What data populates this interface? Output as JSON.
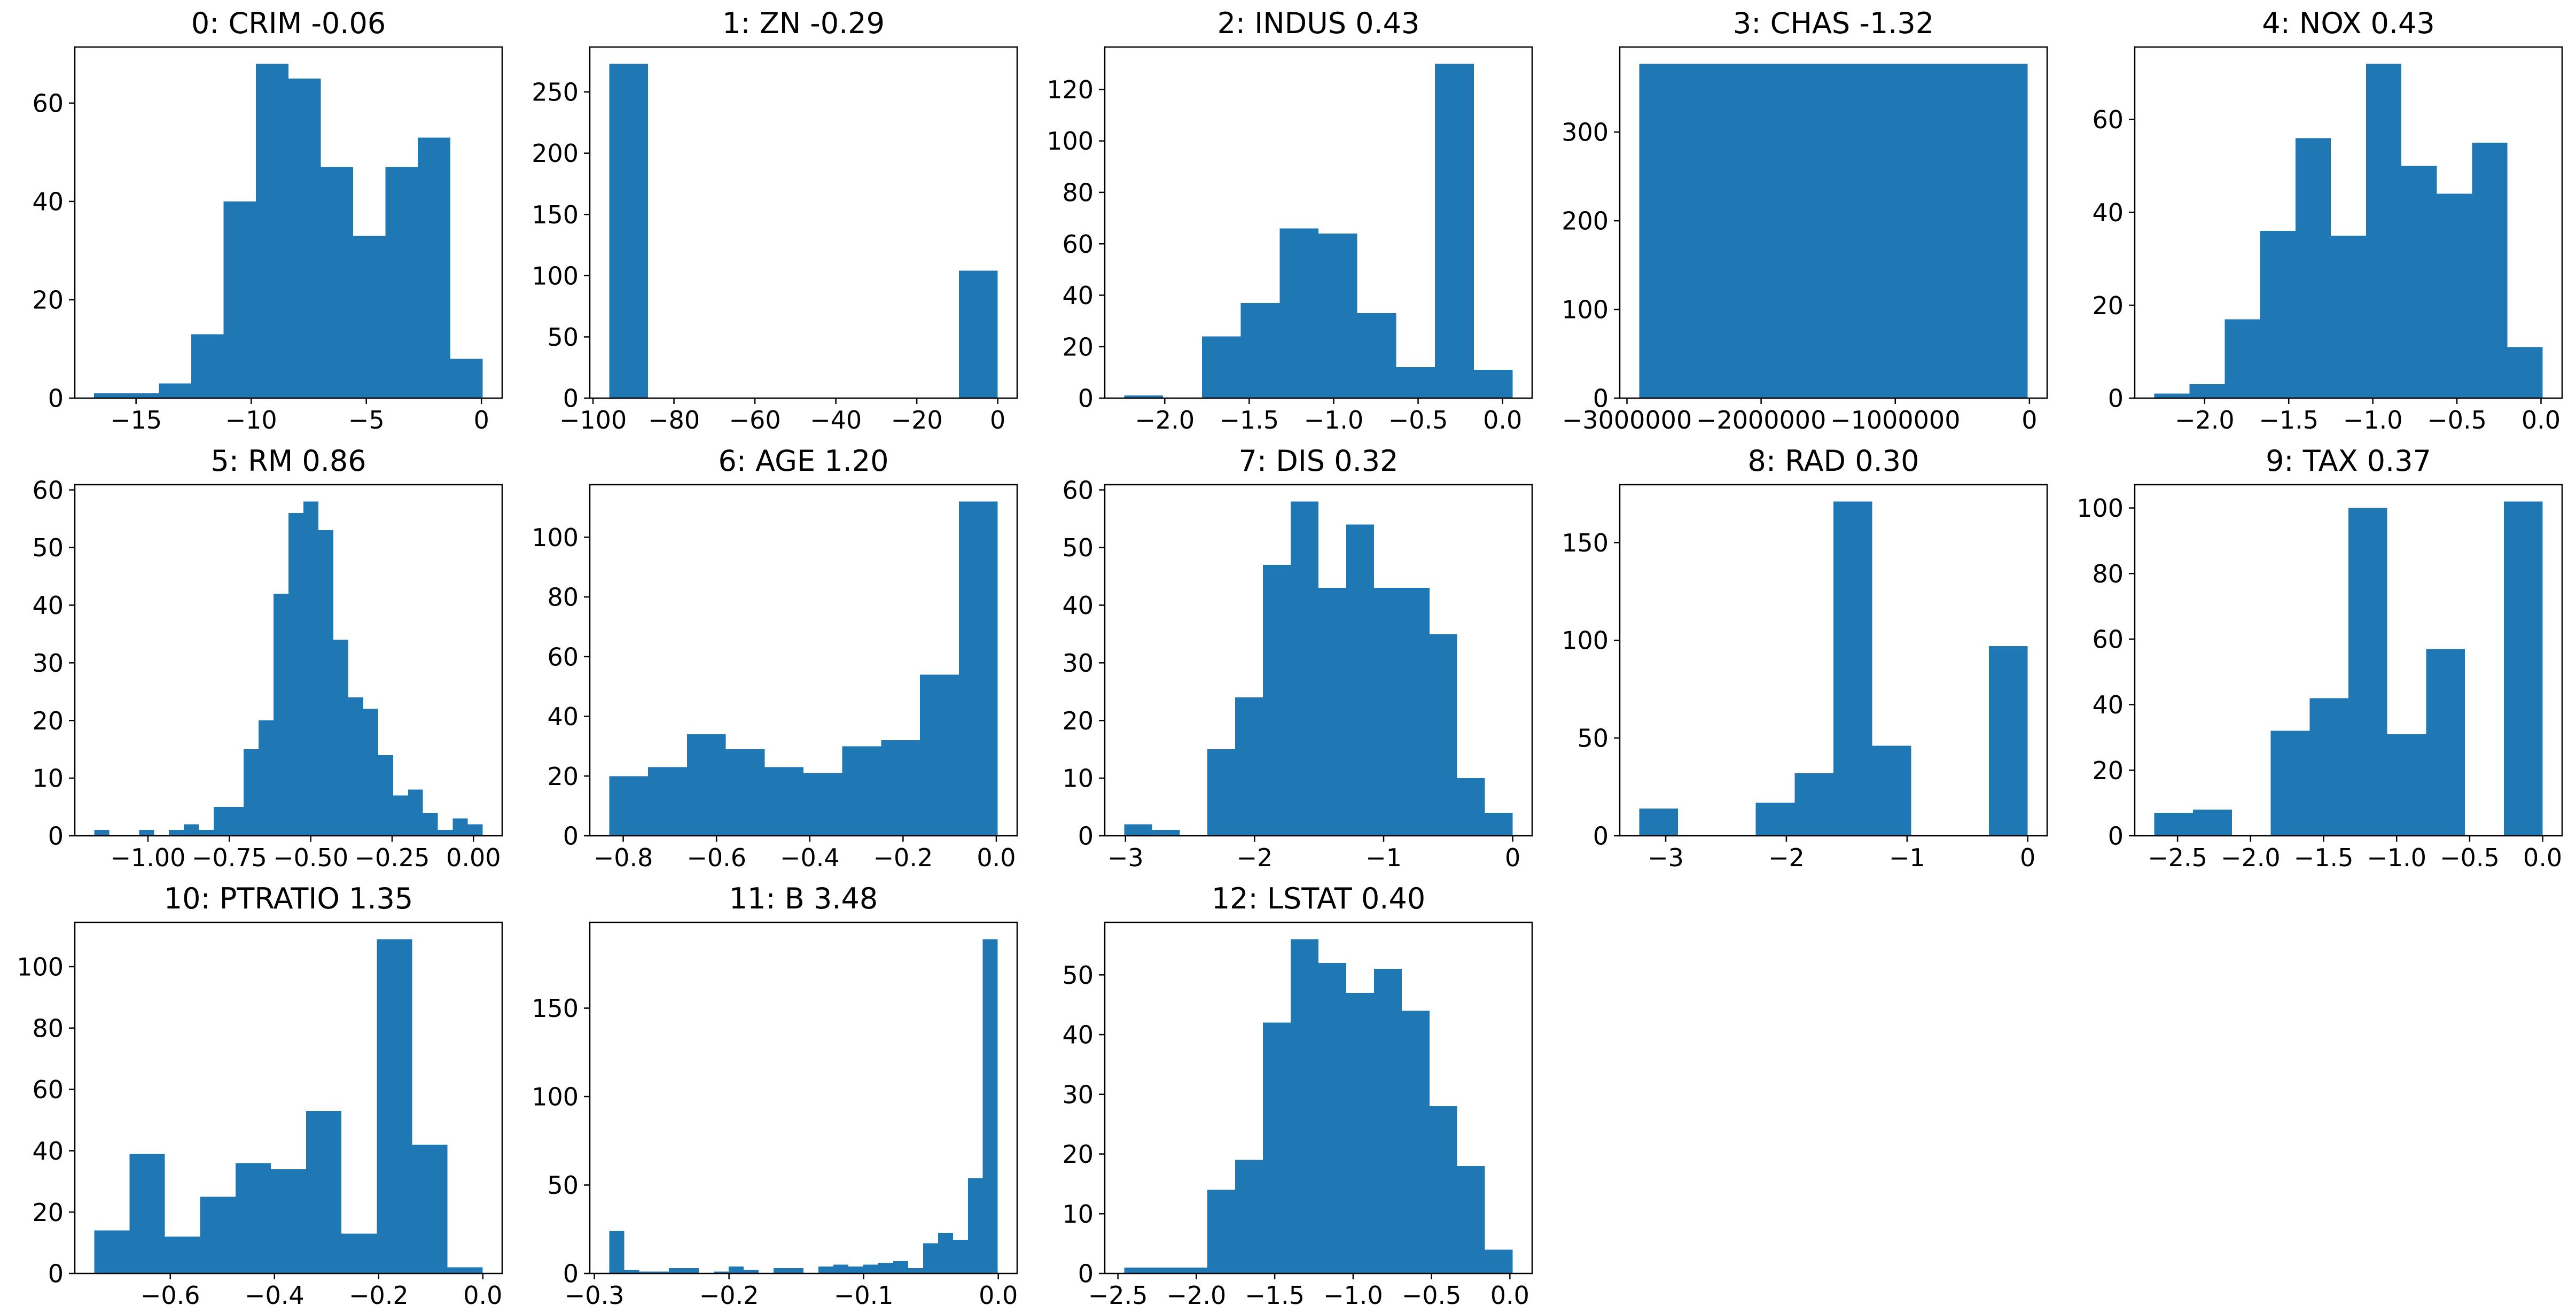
{
  "figure": {
    "background": "#ffffff",
    "bar_color": "#1f77b4",
    "axis_color": "#000000",
    "grid": false,
    "rows": 3,
    "cols": 5,
    "type": "histogram-grid"
  },
  "chart_data": [
    {
      "type": "histogram",
      "title": "0: CRIM -0.06",
      "feature": "CRIM",
      "feature_index": 0,
      "title_value": -0.06,
      "bin_start": -16.82,
      "bin_width": 1.406,
      "counts": [
        1,
        1,
        3,
        13,
        40,
        68,
        65,
        47,
        33,
        47,
        53,
        8
      ],
      "xlim": [
        -17.66,
        0.9
      ],
      "ylim": [
        0,
        71.4
      ],
      "xticks": [
        {
          "v": -15,
          "label": "−15"
        },
        {
          "v": -10,
          "label": "−10"
        },
        {
          "v": -5,
          "label": "−5"
        },
        {
          "v": 0,
          "label": "0"
        }
      ],
      "yticks": [
        {
          "v": 0,
          "label": "0"
        },
        {
          "v": 20,
          "label": "20"
        },
        {
          "v": 40,
          "label": "40"
        },
        {
          "v": 60,
          "label": "60"
        }
      ]
    },
    {
      "type": "histogram",
      "title": "1: ZN -0.29",
      "feature": "ZN",
      "feature_index": 1,
      "title_value": -0.29,
      "bin_start": -96.0,
      "bin_width": 9.6,
      "counts": [
        273,
        0,
        0,
        0,
        0,
        0,
        0,
        0,
        0,
        104
      ],
      "xlim": [
        -100.8,
        4.8
      ],
      "ylim": [
        0,
        286.7
      ],
      "xticks": [
        {
          "v": -100,
          "label": "−100"
        },
        {
          "v": -80,
          "label": "−80"
        },
        {
          "v": -60,
          "label": "−60"
        },
        {
          "v": -40,
          "label": "−40"
        },
        {
          "v": -20,
          "label": "−20"
        },
        {
          "v": 0,
          "label": "0"
        }
      ],
      "yticks": [
        {
          "v": 0,
          "label": "0"
        },
        {
          "v": 50,
          "label": "50"
        },
        {
          "v": 100,
          "label": "100"
        },
        {
          "v": 150,
          "label": "150"
        },
        {
          "v": 200,
          "label": "200"
        },
        {
          "v": 250,
          "label": "250"
        }
      ]
    },
    {
      "type": "histogram",
      "title": "2: INDUS 0.43",
      "feature": "INDUS",
      "feature_index": 2,
      "title_value": 0.43,
      "bin_start": -2.24,
      "bin_width": 0.23,
      "counts": [
        1,
        0,
        24,
        37,
        66,
        64,
        33,
        12,
        130,
        11
      ],
      "xlim": [
        -2.355,
        0.175
      ],
      "ylim": [
        0,
        136.5
      ],
      "xticks": [
        {
          "v": -2.0,
          "label": "−2.0"
        },
        {
          "v": -1.5,
          "label": "−1.5"
        },
        {
          "v": -1.0,
          "label": "−1.0"
        },
        {
          "v": -0.5,
          "label": "−0.5"
        },
        {
          "v": 0.0,
          "label": "0.0"
        }
      ],
      "yticks": [
        {
          "v": 0,
          "label": "0"
        },
        {
          "v": 20,
          "label": "20"
        },
        {
          "v": 40,
          "label": "40"
        },
        {
          "v": 60,
          "label": "60"
        },
        {
          "v": 80,
          "label": "80"
        },
        {
          "v": 100,
          "label": "100"
        },
        {
          "v": 120,
          "label": "120"
        }
      ]
    },
    {
      "type": "histogram",
      "title": "3: CHAS -1.32",
      "feature": "CHAS",
      "feature_index": 3,
      "title_value": -1.32,
      "bin_start": -2909000,
      "bin_width": 2896000,
      "counts": [
        377
      ],
      "xlim": [
        -3053800,
        131800
      ],
      "ylim": [
        0,
        395.9
      ],
      "xticks": [
        {
          "v": -3000000,
          "label": "−3000000"
        },
        {
          "v": -2000000,
          "label": "−2000000"
        },
        {
          "v": -1000000,
          "label": "−1000000"
        },
        {
          "v": 0,
          "label": "0"
        }
      ],
      "yticks": [
        {
          "v": 0,
          "label": "0"
        },
        {
          "v": 100,
          "label": "100"
        },
        {
          "v": 200,
          "label": "200"
        },
        {
          "v": 300,
          "label": "300"
        }
      ]
    },
    {
      "type": "histogram",
      "title": "4: NOX 0.43",
      "feature": "NOX",
      "feature_index": 4,
      "title_value": 0.43,
      "bin_start": -2.3,
      "bin_width": 0.21,
      "counts": [
        1,
        3,
        17,
        36,
        56,
        35,
        72,
        50,
        44,
        55,
        11
      ],
      "xlim": [
        -2.4155,
        0.1255
      ],
      "ylim": [
        0,
        75.6
      ],
      "xticks": [
        {
          "v": -2.0,
          "label": "−2.0"
        },
        {
          "v": -1.5,
          "label": "−1.5"
        },
        {
          "v": -1.0,
          "label": "−1.0"
        },
        {
          "v": -0.5,
          "label": "−0.5"
        },
        {
          "v": 0.0,
          "label": "0.0"
        }
      ],
      "yticks": [
        {
          "v": 0,
          "label": "0"
        },
        {
          "v": 20,
          "label": "20"
        },
        {
          "v": 40,
          "label": "40"
        },
        {
          "v": 60,
          "label": "60"
        }
      ]
    },
    {
      "type": "histogram",
      "title": "5: RM 0.86",
      "feature": "RM",
      "feature_index": 5,
      "title_value": 0.86,
      "bin_start": -1.165,
      "bin_width": 0.0459,
      "counts": [
        1,
        0,
        0,
        1,
        0,
        1,
        2,
        1,
        5,
        5,
        15,
        20,
        42,
        56,
        58,
        53,
        34,
        24,
        22,
        14,
        7,
        8,
        4,
        1,
        3,
        2
      ],
      "xlim": [
        -1.2247,
        0.0881
      ],
      "ylim": [
        0,
        60.9
      ],
      "xticks": [
        {
          "v": -1.0,
          "label": "−1.00"
        },
        {
          "v": -0.75,
          "label": "−0.75"
        },
        {
          "v": -0.5,
          "label": "−0.50"
        },
        {
          "v": -0.25,
          "label": "−0.25"
        },
        {
          "v": 0.0,
          "label": "0.00"
        }
      ],
      "yticks": [
        {
          "v": 0,
          "label": "0"
        },
        {
          "v": 10,
          "label": "10"
        },
        {
          "v": 20,
          "label": "20"
        },
        {
          "v": 30,
          "label": "30"
        },
        {
          "v": 40,
          "label": "40"
        },
        {
          "v": 50,
          "label": "50"
        },
        {
          "v": 60,
          "label": "60"
        }
      ]
    },
    {
      "type": "histogram",
      "title": "6: AGE 1.20",
      "feature": "AGE",
      "feature_index": 6,
      "title_value": 1.2,
      "bin_start": -0.83,
      "bin_width": 0.0833,
      "counts": [
        20,
        23,
        34,
        29,
        23,
        21,
        30,
        32,
        54,
        112
      ],
      "xlim": [
        -0.8717,
        0.0447
      ],
      "ylim": [
        0,
        117.6
      ],
      "xticks": [
        {
          "v": -0.8,
          "label": "−0.8"
        },
        {
          "v": -0.6,
          "label": "−0.6"
        },
        {
          "v": -0.4,
          "label": "−0.4"
        },
        {
          "v": -0.2,
          "label": "−0.2"
        },
        {
          "v": 0.0,
          "label": "0.0"
        }
      ],
      "yticks": [
        {
          "v": 0,
          "label": "0"
        },
        {
          "v": 20,
          "label": "20"
        },
        {
          "v": 40,
          "label": "40"
        },
        {
          "v": 60,
          "label": "60"
        },
        {
          "v": 80,
          "label": "80"
        },
        {
          "v": 100,
          "label": "100"
        }
      ]
    },
    {
      "type": "histogram",
      "title": "7: DIS 0.32",
      "feature": "DIS",
      "feature_index": 7,
      "title_value": 0.32,
      "bin_start": -3.01,
      "bin_width": 0.215,
      "counts": [
        2,
        1,
        0,
        15,
        24,
        47,
        58,
        43,
        54,
        43,
        43,
        35,
        10,
        4
      ],
      "xlim": [
        -3.1605,
        0.1505
      ],
      "ylim": [
        0,
        60.9
      ],
      "xticks": [
        {
          "v": -3,
          "label": "−3"
        },
        {
          "v": -2,
          "label": "−2"
        },
        {
          "v": -1,
          "label": "−1"
        },
        {
          "v": 0,
          "label": "0"
        }
      ],
      "yticks": [
        {
          "v": 0,
          "label": "0"
        },
        {
          "v": 10,
          "label": "10"
        },
        {
          "v": 20,
          "label": "20"
        },
        {
          "v": 30,
          "label": "30"
        },
        {
          "v": 40,
          "label": "40"
        },
        {
          "v": 50,
          "label": "50"
        },
        {
          "v": 60,
          "label": "60"
        }
      ]
    },
    {
      "type": "histogram",
      "title": "8: RAD 0.30",
      "feature": "RAD",
      "feature_index": 8,
      "title_value": 0.3,
      "bin_start": -3.22,
      "bin_width": 0.322,
      "counts": [
        14,
        0,
        0,
        17,
        32,
        171,
        46,
        0,
        0,
        97
      ],
      "xlim": [
        -3.381,
        0.161
      ],
      "ylim": [
        0,
        179.6
      ],
      "xticks": [
        {
          "v": -3,
          "label": "−3"
        },
        {
          "v": -2,
          "label": "−2"
        },
        {
          "v": -1,
          "label": "−1"
        },
        {
          "v": 0,
          "label": "0"
        }
      ],
      "yticks": [
        {
          "v": 0,
          "label": "0"
        },
        {
          "v": 50,
          "label": "50"
        },
        {
          "v": 100,
          "label": "100"
        },
        {
          "v": 150,
          "label": "150"
        }
      ]
    },
    {
      "type": "histogram",
      "title": "9: TAX 0.37",
      "feature": "TAX",
      "feature_index": 9,
      "title_value": 0.37,
      "bin_start": -2.66,
      "bin_width": 0.266,
      "counts": [
        7,
        8,
        0,
        32,
        42,
        100,
        31,
        57,
        0,
        102
      ],
      "xlim": [
        -2.793,
        0.133
      ],
      "ylim": [
        0,
        107.1
      ],
      "xticks": [
        {
          "v": -2.5,
          "label": "−2.5"
        },
        {
          "v": -2.0,
          "label": "−2.0"
        },
        {
          "v": -1.5,
          "label": "−1.5"
        },
        {
          "v": -1.0,
          "label": "−1.0"
        },
        {
          "v": -0.5,
          "label": "−0.5"
        },
        {
          "v": 0.0,
          "label": "0.0"
        }
      ],
      "yticks": [
        {
          "v": 0,
          "label": "0"
        },
        {
          "v": 20,
          "label": "20"
        },
        {
          "v": 40,
          "label": "40"
        },
        {
          "v": 60,
          "label": "60"
        },
        {
          "v": 80,
          "label": "80"
        },
        {
          "v": 100,
          "label": "100"
        }
      ]
    },
    {
      "type": "histogram",
      "title": "10: PTRATIO 1.35",
      "feature": "PTRATIO",
      "feature_index": 10,
      "title_value": 1.35,
      "bin_start": -0.746,
      "bin_width": 0.0678,
      "counts": [
        14,
        39,
        12,
        25,
        36,
        34,
        53,
        13,
        109,
        42,
        2
      ],
      "xlim": [
        -0.7833,
        0.0371
      ],
      "ylim": [
        0,
        114.45
      ],
      "xticks": [
        {
          "v": -0.6,
          "label": "−0.6"
        },
        {
          "v": -0.4,
          "label": "−0.4"
        },
        {
          "v": -0.2,
          "label": "−0.2"
        },
        {
          "v": 0.0,
          "label": "0.0"
        }
      ],
      "yticks": [
        {
          "v": 0,
          "label": "0"
        },
        {
          "v": 20,
          "label": "20"
        },
        {
          "v": 40,
          "label": "40"
        },
        {
          "v": 60,
          "label": "60"
        },
        {
          "v": 80,
          "label": "80"
        },
        {
          "v": 100,
          "label": "100"
        }
      ]
    },
    {
      "type": "histogram",
      "title": "11: B 3.48",
      "feature": "B",
      "feature_index": 11,
      "title_value": 3.48,
      "bin_start": -0.289,
      "bin_width": 0.0111,
      "counts": [
        24,
        2,
        1,
        1,
        3,
        3,
        0,
        1,
        4,
        2,
        0,
        3,
        3,
        0,
        4,
        5,
        4,
        5,
        6,
        7,
        3,
        17,
        23,
        19,
        54,
        189
      ],
      "xlim": [
        -0.3034,
        0.014
      ],
      "ylim": [
        0,
        198.5
      ],
      "xticks": [
        {
          "v": -0.3,
          "label": "−0.3"
        },
        {
          "v": -0.2,
          "label": "−0.2"
        },
        {
          "v": -0.1,
          "label": "−0.1"
        },
        {
          "v": 0.0,
          "label": "0.0"
        }
      ],
      "yticks": [
        {
          "v": 0,
          "label": "0"
        },
        {
          "v": 50,
          "label": "50"
        },
        {
          "v": 100,
          "label": "100"
        },
        {
          "v": 150,
          "label": "150"
        }
      ]
    },
    {
      "type": "histogram",
      "title": "12: LSTAT 0.40",
      "feature": "LSTAT",
      "feature_index": 12,
      "title_value": 0.4,
      "bin_start": -2.46,
      "bin_width": 0.177,
      "counts": [
        1,
        1,
        1,
        14,
        19,
        42,
        56,
        52,
        47,
        51,
        44,
        28,
        18,
        4
      ],
      "xlim": [
        -2.5839,
        0.1419
      ],
      "ylim": [
        0,
        58.8
      ],
      "xticks": [
        {
          "v": -2.5,
          "label": "−2.5"
        },
        {
          "v": -2.0,
          "label": "−2.0"
        },
        {
          "v": -1.5,
          "label": "−1.5"
        },
        {
          "v": -1.0,
          "label": "−1.0"
        },
        {
          "v": -0.5,
          "label": "−0.5"
        },
        {
          "v": 0.0,
          "label": "0.0"
        }
      ],
      "yticks": [
        {
          "v": 0,
          "label": "0"
        },
        {
          "v": 10,
          "label": "10"
        },
        {
          "v": 20,
          "label": "20"
        },
        {
          "v": 30,
          "label": "30"
        },
        {
          "v": 40,
          "label": "40"
        },
        {
          "v": 50,
          "label": "50"
        }
      ]
    }
  ]
}
